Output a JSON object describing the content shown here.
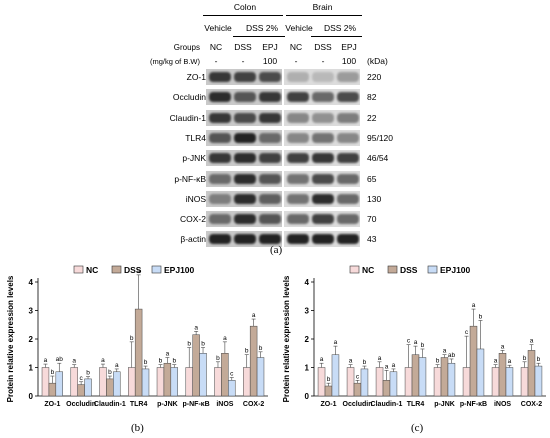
{
  "figure": {
    "panel_a_label": "(a)",
    "panel_b_label": "(b)",
    "panel_c_label": "(c)",
    "tissues": [
      "Colon",
      "Brain"
    ],
    "treatment_row": [
      "Vehicle",
      "DSS 2%",
      "Vehicle",
      "DSS 2%"
    ],
    "groups_label": "Groups",
    "dose_label": "(mg/kg of B.W)",
    "group_names": [
      "NC",
      "DSS",
      "EPJ",
      "NC",
      "DSS",
      "EPJ"
    ],
    "doses": [
      "-",
      "-",
      "100",
      "-",
      "-",
      "100"
    ],
    "kda_label": "(kDa)",
    "blots": [
      {
        "name": "ZO-1",
        "kda": "220"
      },
      {
        "name": "Occludin",
        "kda": "82"
      },
      {
        "name": "Claudin-1",
        "kda": "22"
      },
      {
        "name": "TLR4",
        "kda": "95/120"
      },
      {
        "name": "p-JNK",
        "kda": "46/54"
      },
      {
        "name": "p-NF-κB",
        "kda": "65"
      },
      {
        "name": "iNOS",
        "kda": "130"
      },
      {
        "name": "COX-2",
        "kda": "70"
      },
      {
        "name": "β-actin",
        "kda": "43"
      }
    ],
    "legend_colors": {
      "NC": "#f7dada",
      "DSS": "#c3aa98",
      "EPJ100": "#c8dcf6"
    }
  },
  "chart_data": [
    {
      "type": "bar",
      "ylabel": "Protein relative expression levels",
      "categories": [
        "ZO-1",
        "Occludin",
        "Claudin-1",
        "TLR4",
        "p-JNK",
        "p-NF-κB",
        "iNOS",
        "COX-2"
      ],
      "ylim": [
        0,
        4
      ],
      "yticks": [
        0,
        1,
        2,
        3,
        4
      ],
      "legend_position": "top",
      "series": [
        {
          "name": "NC",
          "color": "#f7dada",
          "values": [
            1.0,
            1.0,
            1.0,
            1.0,
            1.0,
            1.0,
            1.0,
            1.0
          ],
          "errors": [
            0.12,
            0.1,
            0.12,
            0.9,
            0.1,
            0.7,
            0.2,
            0.45
          ],
          "letters": [
            "a",
            "a",
            "a",
            "b",
            "b",
            "b",
            "b",
            "b"
          ]
        },
        {
          "name": "DSS",
          "color": "#c3aa98",
          "values": [
            0.45,
            0.4,
            0.6,
            3.05,
            1.15,
            2.15,
            1.5,
            2.45
          ],
          "errors": [
            0.25,
            0.1,
            0.1,
            1.2,
            0.2,
            0.12,
            0.4,
            0.25
          ],
          "letters": [
            "b",
            "c",
            "b",
            "a",
            "a",
            "a",
            "a",
            "a"
          ]
        },
        {
          "name": "EPJ100",
          "color": "#c8dcf6",
          "values": [
            0.85,
            0.6,
            0.85,
            0.95,
            1.0,
            1.5,
            0.55,
            1.35
          ],
          "errors": [
            0.3,
            0.08,
            0.1,
            0.1,
            0.1,
            0.2,
            0.1,
            0.2
          ],
          "letters": [
            "ab",
            "b",
            "a",
            "b",
            "b",
            "b",
            "c",
            "b"
          ]
        }
      ]
    },
    {
      "type": "bar",
      "ylabel": "Protein relative expression levels",
      "categories": [
        "ZO-1",
        "Occludin",
        "Claudin-1",
        "TLR4",
        "p-JNK",
        "p-NF-κB",
        "iNOS",
        "COX-2"
      ],
      "ylim": [
        0,
        4
      ],
      "yticks": [
        0,
        1,
        2,
        3,
        4
      ],
      "legend_position": "top",
      "series": [
        {
          "name": "NC",
          "color": "#f7dada",
          "values": [
            1.0,
            1.0,
            1.0,
            1.0,
            1.0,
            1.0,
            1.0,
            1.0
          ],
          "errors": [
            0.15,
            0.1,
            0.2,
            0.8,
            0.1,
            1.1,
            0.1,
            0.2
          ],
          "letters": [
            "a",
            "a",
            "a",
            "c",
            "b",
            "c",
            "a",
            "b"
          ]
        },
        {
          "name": "DSS",
          "color": "#c3aa98",
          "values": [
            0.35,
            0.45,
            0.55,
            1.45,
            1.35,
            2.45,
            1.5,
            1.6
          ],
          "errors": [
            0.1,
            0.1,
            0.35,
            0.3,
            0.1,
            0.6,
            0.1,
            0.2
          ],
          "letters": [
            "b",
            "c",
            "a",
            "a",
            "a",
            "a",
            "a",
            "a"
          ]
        },
        {
          "name": "EPJ100",
          "color": "#c8dcf6",
          "values": [
            1.45,
            0.95,
            0.85,
            1.35,
            1.15,
            1.65,
            1.0,
            1.05
          ],
          "errors": [
            0.3,
            0.1,
            0.1,
            0.3,
            0.15,
            1.0,
            0.08,
            0.1
          ],
          "letters": [
            "a",
            "b",
            "a",
            "b",
            "ab",
            "b",
            "a",
            "b"
          ]
        }
      ]
    }
  ]
}
